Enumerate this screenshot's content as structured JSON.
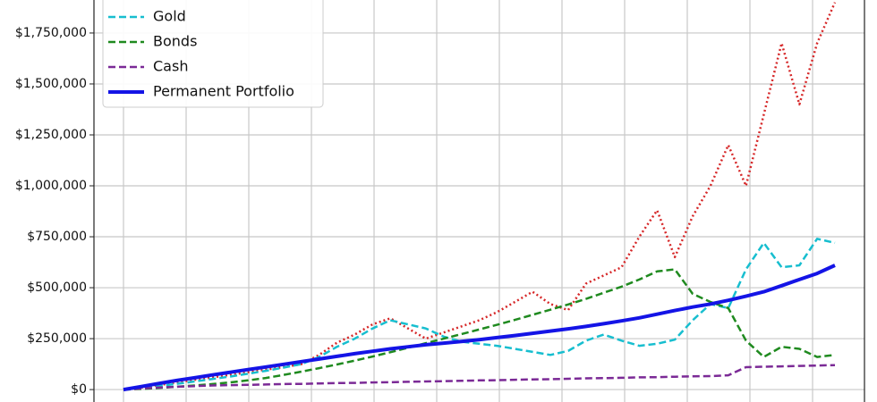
{
  "chart_data": {
    "type": "line",
    "ylim": [
      -61000,
      1912000
    ],
    "yticks": [
      {
        "value": 0,
        "label": "$0"
      },
      {
        "value": 250000,
        "label": "$250,000"
      },
      {
        "value": 500000,
        "label": "$500,000"
      },
      {
        "value": 750000,
        "label": "$750,000"
      },
      {
        "value": 1000000,
        "label": "$1,000,000"
      },
      {
        "value": 1250000,
        "label": "$1,250,000"
      },
      {
        "value": 1500000,
        "label": "$1,500,000"
      },
      {
        "value": 1750000,
        "label": "$1,750,000"
      }
    ],
    "grid": true,
    "legend": "upper left",
    "series": [
      {
        "color": "#d62728",
        "style": "dotted",
        "values": [
          0,
          10000,
          22000,
          35000,
          48000,
          60000,
          72000,
          85000,
          98000,
          110000,
          125000,
          170000,
          230000,
          270000,
          320000,
          350000,
          300000,
          250000,
          280000,
          310000,
          340000,
          380000,
          430000,
          480000,
          420000,
          390000,
          520000,
          560000,
          600000,
          750000,
          880000,
          650000,
          850000,
          1000000,
          1200000,
          1000000,
          1350000,
          1700000,
          1400000,
          1700000,
          1900000
        ]
      },
      {
        "name": "Gold",
        "color": "#17becf",
        "style": "dashed",
        "values": [
          0,
          8000,
          18000,
          28000,
          40000,
          52000,
          64000,
          78000,
          92000,
          108000,
          125000,
          160000,
          210000,
          250000,
          300000,
          340000,
          320000,
          300000,
          260000,
          235000,
          225000,
          215000,
          200000,
          185000,
          170000,
          190000,
          240000,
          270000,
          240000,
          215000,
          225000,
          245000,
          340000,
          420000,
          400000,
          590000,
          720000,
          600000,
          610000,
          740000,
          720000
        ]
      },
      {
        "name": "Bonds",
        "color": "#1f8a1f",
        "style": "dashed",
        "values": [
          0,
          3000,
          8000,
          14000,
          20000,
          27000,
          35000,
          45000,
          57000,
          72000,
          88000,
          105000,
          123000,
          142000,
          162000,
          183000,
          205000,
          228000,
          250000,
          272000,
          295000,
          318000,
          342000,
          367000,
          392000,
          418000,
          445000,
          475000,
          505000,
          540000,
          580000,
          590000,
          470000,
          430000,
          400000,
          240000,
          160000,
          210000,
          200000,
          160000,
          170000
        ]
      },
      {
        "name": "Cash",
        "color": "#7b2a96",
        "style": "dashed",
        "values": [
          0,
          5000,
          10000,
          14000,
          17000,
          20000,
          22000,
          23000,
          25000,
          27000,
          28000,
          30000,
          32000,
          33000,
          35000,
          36000,
          38000,
          40000,
          41000,
          43000,
          45000,
          46000,
          48000,
          50000,
          51000,
          53000,
          55000,
          56000,
          58000,
          60000,
          61000,
          63000,
          65000,
          66000,
          70000,
          110000,
          112000,
          114000,
          116000,
          118000,
          120000
        ]
      },
      {
        "name": "Permanent Portfolio",
        "color": "#1414e6",
        "style": "solid",
        "values": [
          0,
          15000,
          30000,
          45000,
          58000,
          72000,
          85000,
          98000,
          111000,
          124000,
          137000,
          150000,
          163000,
          176000,
          188000,
          200000,
          210000,
          220000,
          228000,
          236000,
          245000,
          255000,
          265000,
          276000,
          287000,
          298000,
          310000,
          323000,
          337000,
          352000,
          370000,
          388000,
          405000,
          420000,
          438000,
          458000,
          480000,
          510000,
          540000,
          570000,
          610000
        ]
      }
    ]
  }
}
